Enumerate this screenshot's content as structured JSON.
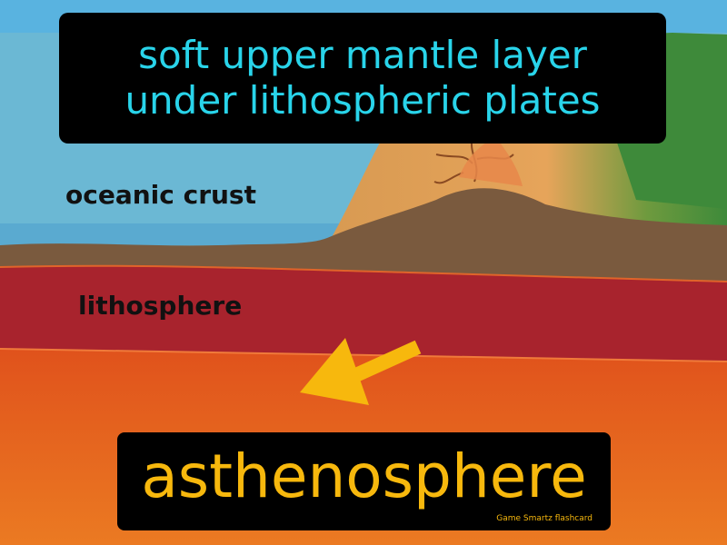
{
  "definition": {
    "line1": "soft upper mantle layer",
    "line2": "under lithospheric plates"
  },
  "labels": {
    "oceanic_crust": "oceanic crust",
    "lithosphere": "lithosphere"
  },
  "term": "asthenosphere",
  "credit": "Game Smartz flashcard",
  "colors": {
    "ocean": "#6bb8d4",
    "ocean_deep": "#5aaad0",
    "crust": "#7a5a3e",
    "lithosphere": "#a8232d",
    "asthenosphere": "#e2601e",
    "land_green": "#3e8a3a",
    "land_tan": "#d99a52",
    "arrow": "#f7b80d",
    "definition_text": "#29d4ea",
    "term_text": "#f7b80d"
  }
}
